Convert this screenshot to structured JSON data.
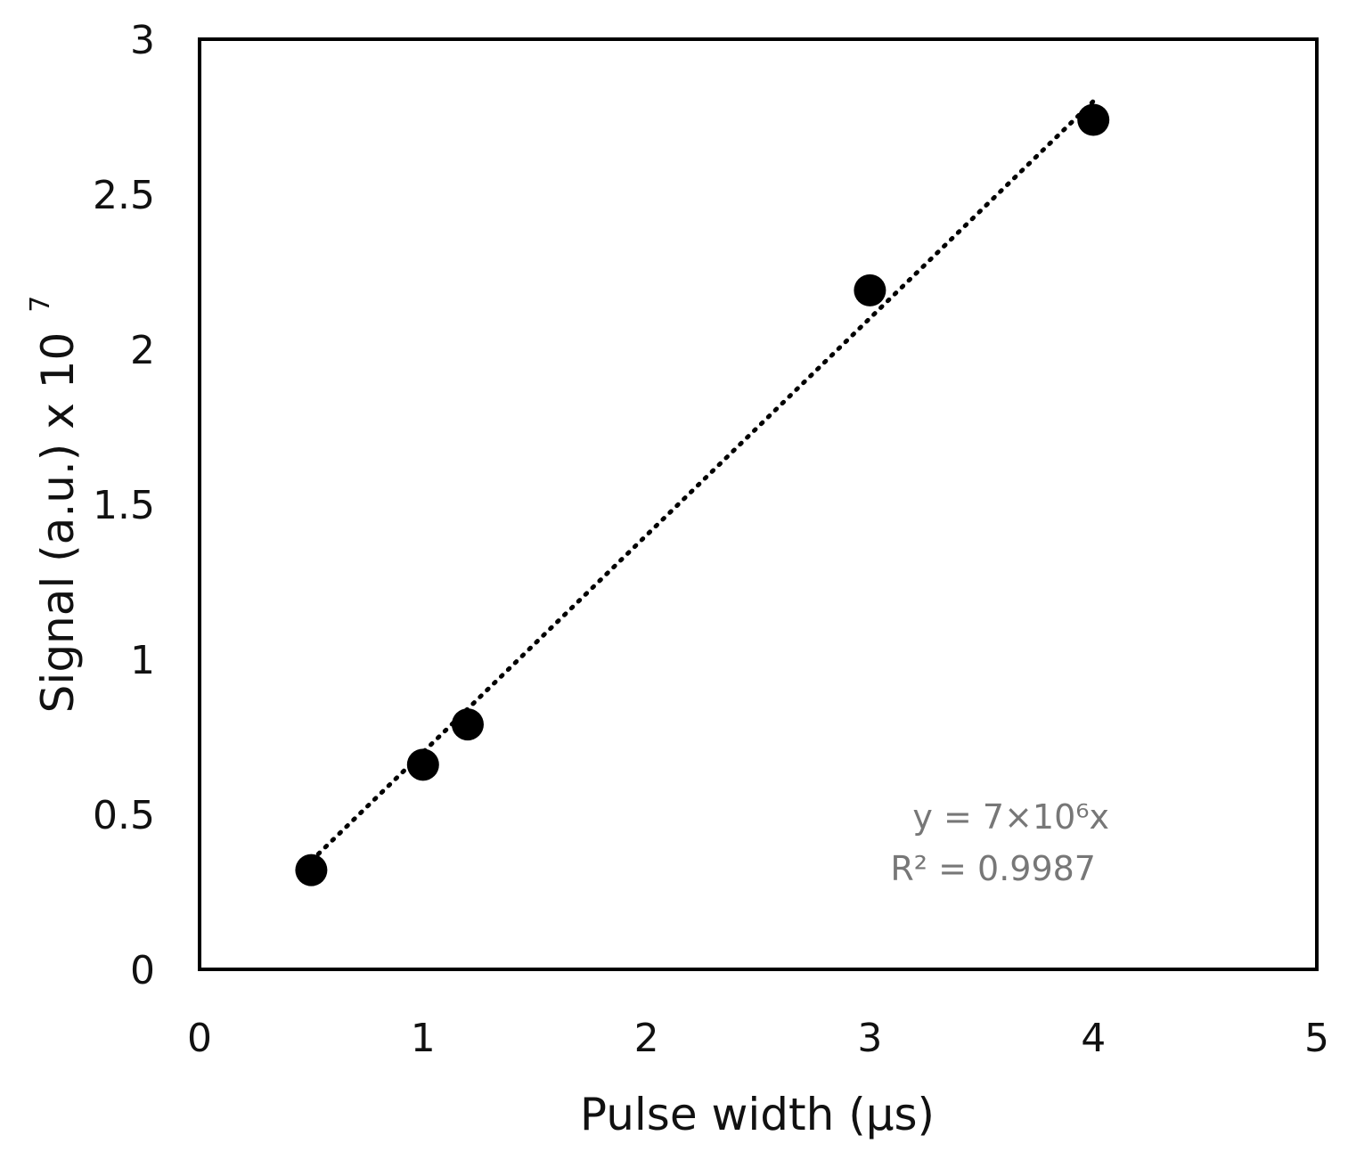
{
  "chart_data": {
    "type": "scatter",
    "title": "",
    "xlabel": "Pulse width (µs)",
    "ylabel": "Signal (a.u.) x 10",
    "ylabel_exponent": "7",
    "xlim": [
      0,
      5
    ],
    "ylim": [
      0,
      3
    ],
    "x_ticks": [
      "0",
      "1",
      "2",
      "3",
      "4",
      "5"
    ],
    "y_ticks": [
      "0",
      "0.5",
      "1",
      "1.5",
      "2",
      "2.5",
      "3"
    ],
    "grid": false,
    "legend": "none",
    "series": [
      {
        "x": [
          0.5,
          1.0,
          1.2,
          3.0,
          4.0
        ],
        "y": [
          0.32,
          0.66,
          0.79,
          2.19,
          2.74
        ],
        "marker": "filled-circle",
        "color": "#000000"
      }
    ],
    "trendline": {
      "style": "dotted",
      "color": "#000000",
      "x_range": [
        0.5,
        4.0
      ],
      "slope": 0.7,
      "intercept": 0
    },
    "annotations": {
      "equation": "y = 7×10⁶x",
      "r_squared": "R² = 0.9987"
    }
  }
}
